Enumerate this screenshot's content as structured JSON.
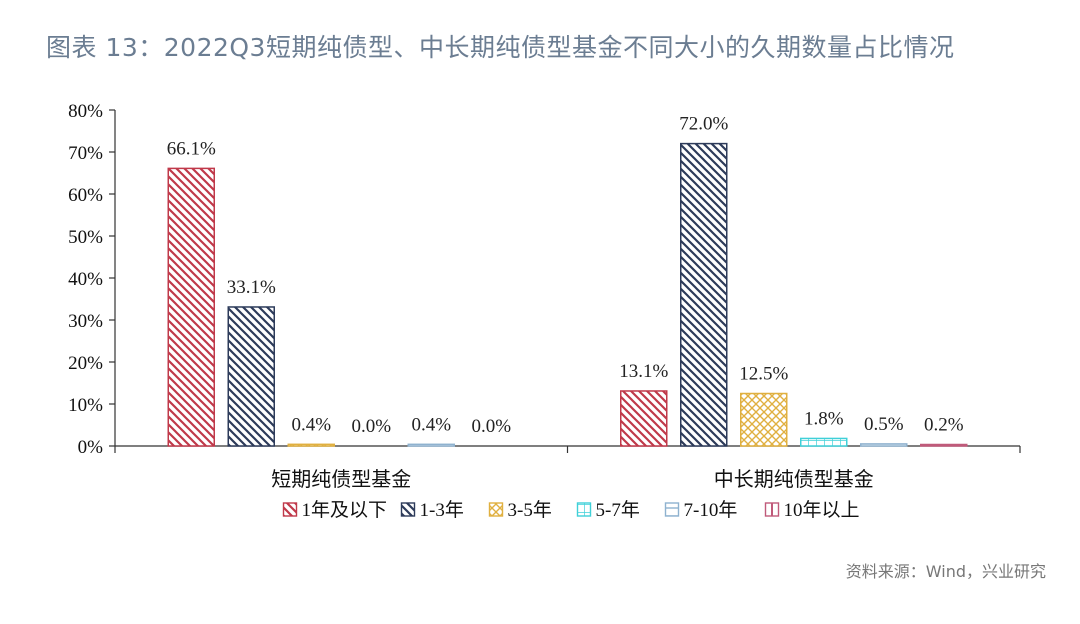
{
  "title": "图表 13：2022Q3短期纯债型、中长期纯债型基金不同大小的久期数量占比情况",
  "source": "资料来源：Wind，兴业研究",
  "colors": {
    "red": "#c0394a",
    "navy": "#2d3b5a",
    "gold": "#e0b040",
    "cyan": "#3fd0d8",
    "lightblue": "#8fb2cf",
    "pink": "#c05a7a"
  },
  "chart_data": {
    "type": "bar",
    "categories": [
      "短期纯债型基金",
      "中长期纯债型基金"
    ],
    "series": [
      {
        "name": "1年及以下",
        "values": [
          66.1,
          13.1
        ],
        "labels": [
          "66.1%",
          "13.1%"
        ],
        "color": "#c0394a",
        "pattern": "diag-right"
      },
      {
        "name": "1-3年",
        "values": [
          33.1,
          72.0
        ],
        "labels": [
          "33.1%",
          "72.0%"
        ],
        "color": "#2d3b5a",
        "pattern": "diag-right"
      },
      {
        "name": "3-5年",
        "values": [
          0.4,
          12.5
        ],
        "labels": [
          "0.4%",
          "12.5%"
        ],
        "color": "#e0b040",
        "pattern": "crosshatch"
      },
      {
        "name": "5-7年",
        "values": [
          0.0,
          1.8
        ],
        "labels": [
          "0.0%",
          "1.8%"
        ],
        "color": "#3fd0d8",
        "pattern": "grid"
      },
      {
        "name": "7-10年",
        "values": [
          0.4,
          0.5
        ],
        "labels": [
          "0.4%",
          "0.5%"
        ],
        "color": "#8fb2cf",
        "pattern": "horizontal"
      },
      {
        "name": "10年以上",
        "values": [
          0.0,
          0.2
        ],
        "labels": [
          "0.0%",
          "0.2%"
        ],
        "color": "#c05a7a",
        "pattern": "vertical"
      }
    ],
    "yticks": [
      "0%",
      "10%",
      "20%",
      "30%",
      "40%",
      "50%",
      "60%",
      "70%",
      "80%"
    ],
    "ylim": [
      0,
      80
    ],
    "grid": false,
    "legend_position": "bottom"
  }
}
